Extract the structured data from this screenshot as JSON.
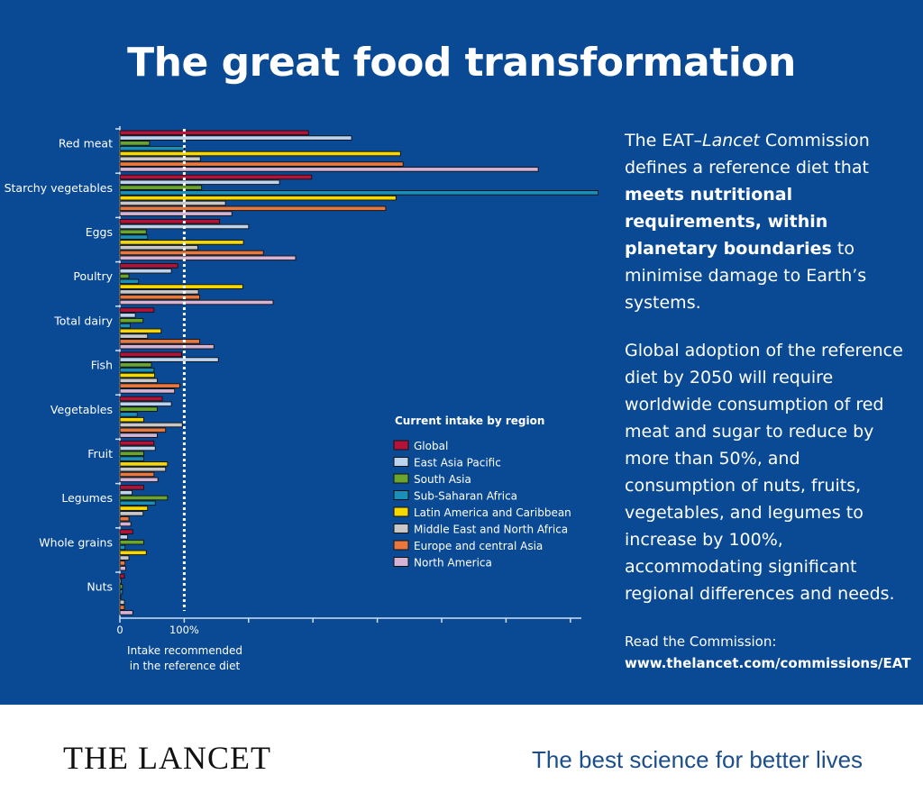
{
  "title": "The great food transformation",
  "description": {
    "p1": {
      "a": "The EAT–",
      "italic": "Lancet",
      "b": " Commission defines a reference diet that ",
      "bold": "meets nutritional requirements, within planetary boundaries",
      "c": " to minimise damage to Earth’s systems."
    },
    "p2": "Global adoption of the reference diet by 2050 will require worldwide consumption of red meat and sugar to reduce by more than 50%, and consumption of nuts, fruits, vegetables, and legumes to increase by 100%, accommodating significant regional differences and needs.",
    "read_label": "Read the Commission:",
    "read_url": "www.thelancet.com/commissions/EAT"
  },
  "footer": {
    "logo": "THE LANCET",
    "tagline": "The best science for better lives"
  },
  "colors": {
    "background": "#0a4a94"
  },
  "chart_data": {
    "type": "bar",
    "orientation": "horizontal",
    "unit": "% of reference diet intake",
    "xlim": [
      0,
      700
    ],
    "xticks": [
      0,
      100,
      200,
      300,
      400,
      500,
      600,
      700
    ],
    "xtick_labels": [
      "0",
      "100%"
    ],
    "reference_line": {
      "value": 100,
      "label": "Intake recommended in the reference diet",
      "label_line1": "Intake recommended",
      "label_line2": "in the reference diet",
      "style": "dotted white"
    },
    "legend_title": "Current intake by region",
    "legend_position": "center-right",
    "categories": [
      "Red meat",
      "Starchy vegetables",
      "Eggs",
      "Poultry",
      "Total dairy",
      "Fish",
      "Vegetables",
      "Fruit",
      "Legumes",
      "Whole grains",
      "Nuts"
    ],
    "series": [
      {
        "name": "Global",
        "color": "#b5123a",
        "values": [
          293,
          298,
          155,
          90,
          53,
          96,
          66,
          53,
          37,
          20,
          7
        ]
      },
      {
        "name": "East Asia Pacific",
        "color": "#bcd4ee",
        "values": [
          360,
          248,
          200,
          80,
          24,
          153,
          80,
          55,
          19,
          12,
          2
        ]
      },
      {
        "name": "South Asia",
        "color": "#6aa62e",
        "values": [
          46,
          127,
          41,
          14,
          36,
          49,
          58,
          37,
          74,
          37,
          4
        ]
      },
      {
        "name": "Sub-Saharan Africa",
        "color": "#1a8fb8",
        "values": [
          100,
          743,
          43,
          29,
          16,
          53,
          27,
          37,
          55,
          8,
          4
        ]
      },
      {
        "name": "Latin America and Caribbean",
        "color": "#f7d800",
        "values": [
          436,
          429,
          192,
          191,
          64,
          54,
          37,
          74,
          43,
          41,
          1
        ]
      },
      {
        "name": "Middle East and North Africa",
        "color": "#c8c8c8",
        "values": [
          125,
          164,
          121,
          122,
          43,
          58,
          97,
          71,
          36,
          14,
          7
        ]
      },
      {
        "name": "Europe and central  Asia",
        "color": "#e8783e",
        "values": [
          440,
          413,
          223,
          124,
          124,
          93,
          71,
          53,
          14,
          8,
          7
        ]
      },
      {
        "name": "North America",
        "color": "#d4b3d4",
        "values": [
          650,
          174,
          273,
          238,
          146,
          85,
          58,
          59,
          17,
          9,
          20
        ]
      }
    ]
  }
}
